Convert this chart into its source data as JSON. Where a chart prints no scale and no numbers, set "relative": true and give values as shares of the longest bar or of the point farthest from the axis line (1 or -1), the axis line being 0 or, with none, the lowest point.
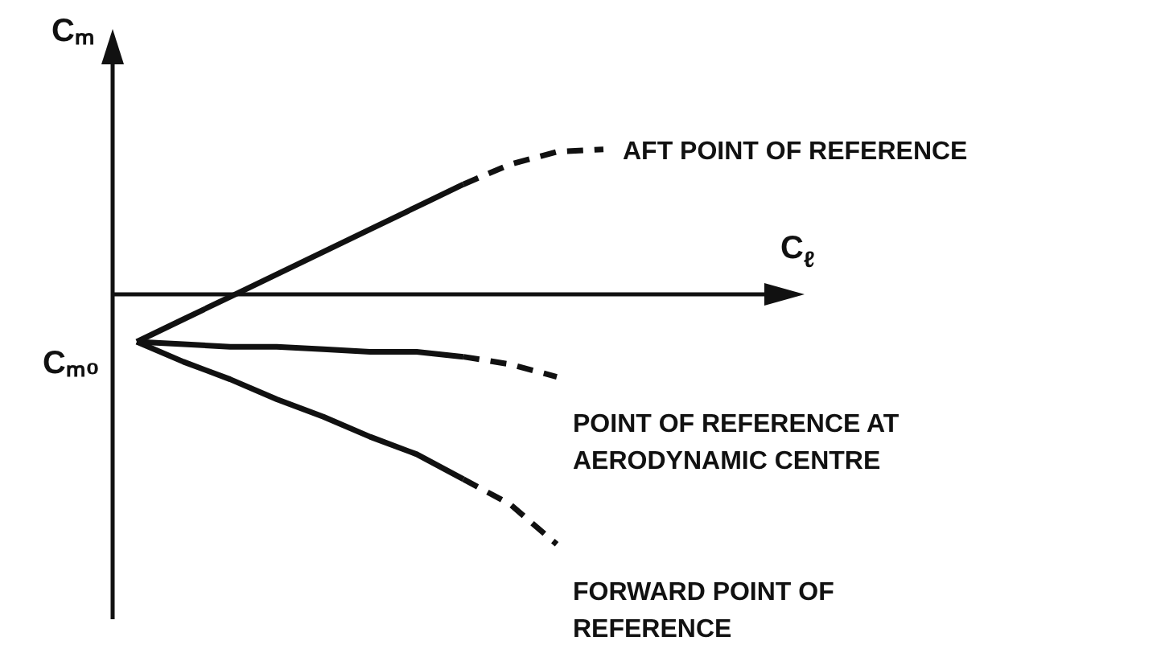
{
  "chart_data": {
    "type": "line",
    "relative": true,
    "xlabel": "C$_{ℓ}$",
    "ylabel": "Cₘ",
    "annotations": [
      "Cₘ₀"
    ],
    "marker": "none",
    "categories": [
      null,
      null,
      null,
      null,
      null,
      null,
      null,
      null,
      null,
      null,
      null
    ],
    "series": [
      {
        "color": "#111111",
        "line_style": "solid",
        "values": [
          -0.19,
          -0.1,
          -0.01,
          0.08,
          0.17,
          0.26,
          0.35,
          0.44,
          null,
          null,
          null
        ]
      },
      {
        "name": "AFT POINT OF REFERENCE",
        "color": "#111111",
        "line_style": "dashed",
        "values": [
          null,
          null,
          null,
          null,
          null,
          null,
          null,
          0.44,
          0.52,
          0.57,
          0.58
        ]
      },
      {
        "color": "#111111",
        "line_style": "solid",
        "values": [
          -0.19,
          -0.2,
          -0.21,
          -0.21,
          -0.22,
          -0.23,
          -0.23,
          -0.25,
          null,
          null,
          null
        ]
      },
      {
        "name": "POINT OF REFERENCE AT AERODYNAMIC CENTRE",
        "color": "#111111",
        "line_style": "dashed",
        "values": [
          null,
          null,
          null,
          null,
          null,
          null,
          null,
          -0.25,
          -0.28,
          -0.33,
          null
        ]
      },
      {
        "color": "#111111",
        "line_style": "solid",
        "values": [
          -0.19,
          -0.27,
          -0.34,
          -0.42,
          -0.49,
          -0.57,
          -0.64,
          -0.74,
          null,
          null,
          null
        ]
      },
      {
        "name": "FORWARD POINT OF REFERENCE",
        "color": "#111111",
        "line_style": "dashed",
        "values": [
          null,
          null,
          null,
          null,
          null,
          null,
          null,
          -0.74,
          -0.84,
          -1,
          null
        ]
      }
    ]
  }
}
